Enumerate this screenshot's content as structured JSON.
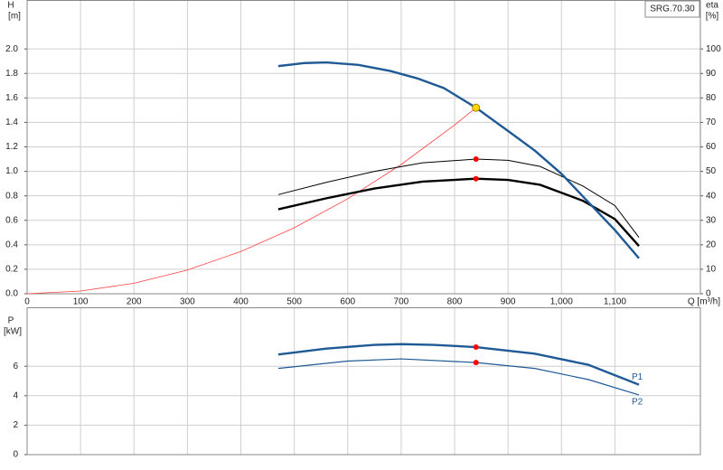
{
  "chart_data": [
    {
      "type": "line",
      "annotation": "SRG.70.30",
      "ylabel": [
        "H",
        "[m]"
      ],
      "y2label": [
        "eta",
        "[%]"
      ],
      "xlabel": "Q [m³/h]",
      "xlim": [
        0,
        1260
      ],
      "xticks": [
        0,
        100,
        200,
        300,
        400,
        500,
        600,
        700,
        800,
        900,
        {
          "value": 1000,
          "label": "1,000"
        },
        {
          "value": 1100,
          "label": "1,100"
        }
      ],
      "ylim": [
        0,
        2.4
      ],
      "yticks": [
        {
          "value": 0,
          "label": "0.0"
        },
        0.2,
        0.4,
        0.6,
        0.8,
        {
          "value": 1,
          "label": "1.0"
        },
        1.2,
        1.4,
        1.6,
        1.8,
        {
          "value": 2,
          "label": "2.0"
        }
      ],
      "y2lim": [
        0,
        120
      ],
      "y2ticks": [
        0,
        10,
        20,
        30,
        40,
        50,
        60,
        70,
        80,
        90,
        100
      ],
      "grid": true,
      "series": [
        {
          "color": "#ff4040",
          "width": 0.8,
          "x": [
            0,
            100,
            200,
            300,
            400,
            500,
            600,
            700,
            800,
            840
          ],
          "values": [
            0,
            0.022,
            0.086,
            0.194,
            0.345,
            0.539,
            0.776,
            1.056,
            1.379,
            1.52
          ]
        },
        {
          "color": "#000000",
          "width": 1,
          "axis": "y2",
          "x": [
            470,
            560,
            650,
            740,
            840,
            900,
            960,
            1040,
            1100,
            1145
          ],
          "values": [
            40.5,
            45.5,
            50,
            53.5,
            55,
            54.5,
            52,
            44,
            36,
            23
          ]
        },
        {
          "color": "#000000",
          "width": 2.4,
          "axis": "y2",
          "x": [
            470,
            560,
            650,
            740,
            840,
            900,
            960,
            1040,
            1100,
            1145
          ],
          "values": [
            34.5,
            39,
            43,
            45.8,
            47,
            46.5,
            44.5,
            38,
            30.5,
            19.5
          ]
        },
        {
          "color": "#1f5a96",
          "width": 2.4,
          "x": [
            470,
            520,
            560,
            620,
            680,
            730,
            780,
            840,
            900,
            950,
            1000,
            1050,
            1100,
            1145
          ],
          "values": [
            1.86,
            1.885,
            1.89,
            1.87,
            1.82,
            1.76,
            1.68,
            1.52,
            1.33,
            1.17,
            0.98,
            0.75,
            0.52,
            0.29
          ]
        }
      ],
      "points": [
        {
          "x": 840,
          "y": 1.52,
          "color": "#ffd700"
        },
        {
          "x": 840,
          "y": 55,
          "axis": "y2",
          "color": "#ff0000"
        },
        {
          "x": 840,
          "y": 47,
          "axis": "y2",
          "color": "#ff0000"
        }
      ]
    },
    {
      "type": "line",
      "ylabel": [
        "P",
        "[kW]"
      ],
      "xlim": [
        0,
        1260
      ],
      "ylim": [
        0,
        10
      ],
      "yticks": [
        0,
        2,
        4,
        6
      ],
      "grid": true,
      "series": [
        {
          "name": "P1",
          "color": "#1f5a96",
          "width": 2.4,
          "x": [
            470,
            560,
            650,
            700,
            760,
            840,
            950,
            1050,
            1145
          ],
          "values": [
            6.8,
            7.2,
            7.45,
            7.5,
            7.45,
            7.3,
            6.85,
            6.1,
            4.75
          ]
        },
        {
          "name": "P2",
          "color": "#1f5a96",
          "width": 1.2,
          "x": [
            470,
            600,
            700,
            840,
            950,
            1050,
            1145
          ],
          "values": [
            5.85,
            6.35,
            6.5,
            6.25,
            5.85,
            5.1,
            4.05
          ]
        }
      ],
      "points": [
        {
          "x": 840,
          "y": 7.3,
          "color": "#ff0000"
        },
        {
          "x": 840,
          "y": 6.25,
          "color": "#ff0000"
        }
      ]
    }
  ]
}
